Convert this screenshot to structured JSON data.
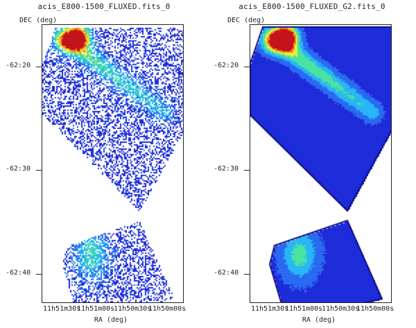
{
  "panels": [
    {
      "title": "acis_E800-1500_FLUXED.fits_0",
      "dec_label": "DEC (deg)",
      "ra_label": "RA (deg)",
      "y_ticks": [
        "-62:20",
        "-62:30",
        "-62:40"
      ],
      "x_ticks": [
        "11h51m30s",
        "11h51m00s",
        "11h50m30s",
        "11h50m00s"
      ],
      "style": "unsmoothed"
    },
    {
      "title": "acis_E800-1500_FLUXED_G2.fits_0",
      "dec_label": "DEC (deg)",
      "ra_label": "RA (deg)",
      "y_ticks": [
        "-62:20",
        "-62:30",
        "-62:40"
      ],
      "x_ticks": [
        "11h51m30s",
        "11h51m00s",
        "11h50m30s",
        "11h50m00s"
      ],
      "style": "smoothed"
    }
  ],
  "colormap": [
    "#ffffff",
    "#1e2bd9",
    "#2a6af0",
    "#29b6f6",
    "#4be3a0",
    "#e6f03a",
    "#f58a1f",
    "#c4141b"
  ]
}
